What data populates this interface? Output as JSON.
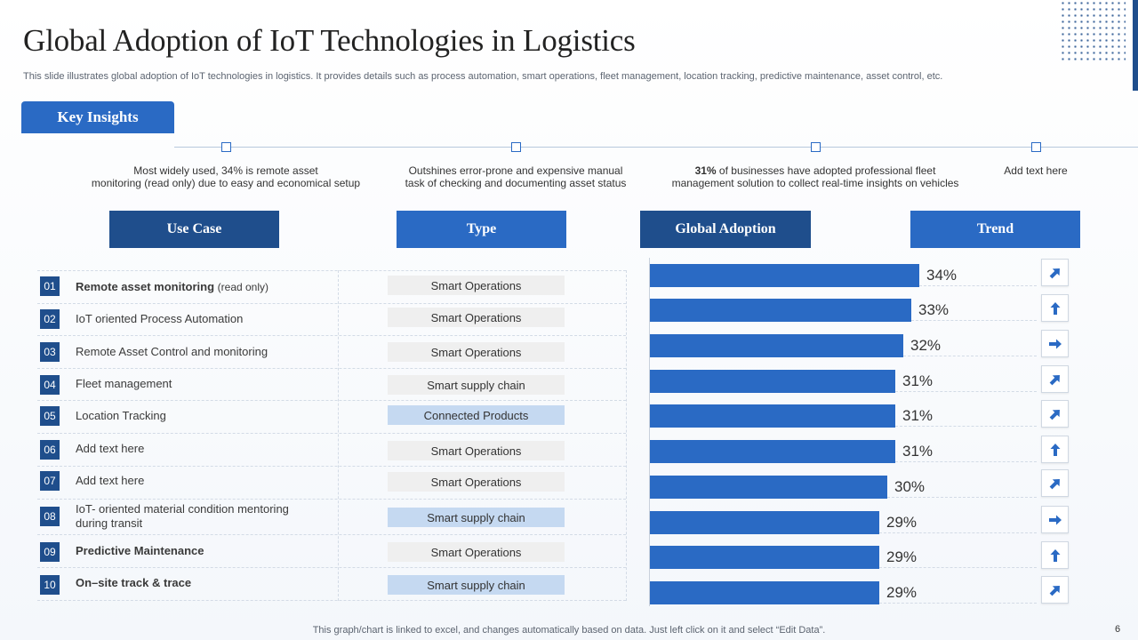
{
  "title": "Global Adoption of IoT Technologies in Logistics",
  "subtitle": "This slide illustrates global adoption of IoT technologies in logistics. It provides details such as process automation, smart operations, fleet management, location tracking, predictive maintenance, asset control, etc.",
  "key_insights": {
    "label": "Key Insights",
    "items": [
      {
        "line1": "Most widely used, 34% is remote asset",
        "line2": "monitoring (read only) due to easy and economical setup"
      },
      {
        "line1": "Outshines error-prone and expensive manual",
        "line2": "task of checking and documenting asset status"
      },
      {
        "bold": "31%",
        "line1": " of businesses have adopted professional fleet",
        "line2": "management solution to collect real-time insights on vehicles"
      },
      {
        "line1": "Add text here",
        "line2": ""
      }
    ]
  },
  "headers": {
    "use_case": "Use Case",
    "type": "Type",
    "global_adoption": "Global Adoption",
    "trend": "Trend"
  },
  "rows": [
    {
      "num": "01",
      "use_case": "Remote  asset  monitoring",
      "use_case_suffix": "(read only)",
      "type": "Smart Operations"
    },
    {
      "num": "02",
      "use_case": "IoT oriented  Process Automation",
      "type": "Smart Operations"
    },
    {
      "num": "03",
      "use_case": "Remote Asset Control and monitoring",
      "type": "Smart Operations"
    },
    {
      "num": "04",
      "use_case": "Fleet management",
      "type": "Smart supply chain"
    },
    {
      "num": "05",
      "use_case": "Location Tracking",
      "type": "Connected Products"
    },
    {
      "num": "06",
      "use_case": "Add text here",
      "type": "Smart Operations"
    },
    {
      "num": "07",
      "use_case": "Add text here",
      "type": "Smart Operations"
    },
    {
      "num": "08",
      "use_case": "IoT- oriented material  condition mentoring",
      "use_case_line2": "during transit",
      "type": "Smart supply chain"
    },
    {
      "num": "09",
      "use_case": "Predictive Maintenance",
      "type": "Smart Operations"
    },
    {
      "num": "10",
      "use_case": "On–site track & trace",
      "type": "Smart supply chain"
    }
  ],
  "chart_data": {
    "type": "bar",
    "orientation": "horizontal",
    "categories": [
      "01",
      "02",
      "03",
      "04",
      "05",
      "06",
      "07",
      "08",
      "09",
      "10"
    ],
    "values": [
      34,
      33,
      32,
      31,
      31,
      31,
      30,
      29,
      29,
      29
    ],
    "labels": [
      "34%",
      "33%",
      "32%",
      "31%",
      "31%",
      "31%",
      "30%",
      "29%",
      "29%",
      "29%"
    ],
    "bar_color": "#2a6ac4",
    "xlim": [
      0,
      40
    ]
  },
  "trends": [
    "up-right",
    "up",
    "right",
    "up-right",
    "up-right",
    "up",
    "up-right",
    "right",
    "up",
    "up-right"
  ],
  "footer": "This graph/chart is linked to excel,  and changes automatically based on data. Just left click on it and select “Edit Data”.",
  "page_number": "6",
  "colors": {
    "dark_blue": "#1f4e8c",
    "mid_blue": "#2a6ac4",
    "light_blue": "#c5d9f1",
    "gray_pill": "#efefef"
  }
}
